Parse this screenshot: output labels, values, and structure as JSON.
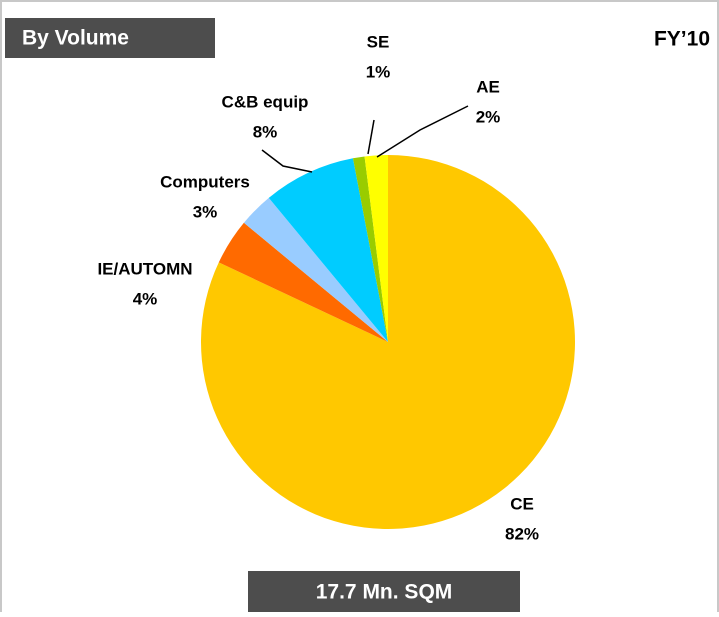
{
  "chart_data": {
    "type": "pie",
    "title": "By Volume",
    "period": "FY’10",
    "total": "17.7 Mn. SQM",
    "categories": [
      "CE",
      "IE/AUTOMN",
      "Computers",
      "C&B equip",
      "SE",
      "AE"
    ],
    "values": [
      82,
      4,
      3,
      8,
      1,
      2
    ],
    "value_labels": [
      "82%",
      "4%",
      "3%",
      "8%",
      "1%",
      "2%"
    ],
    "colors": [
      "#FFC800",
      "#FF6A00",
      "#99CCFF",
      "#00CCFF",
      "#99CC00",
      "#FFFF00"
    ]
  }
}
